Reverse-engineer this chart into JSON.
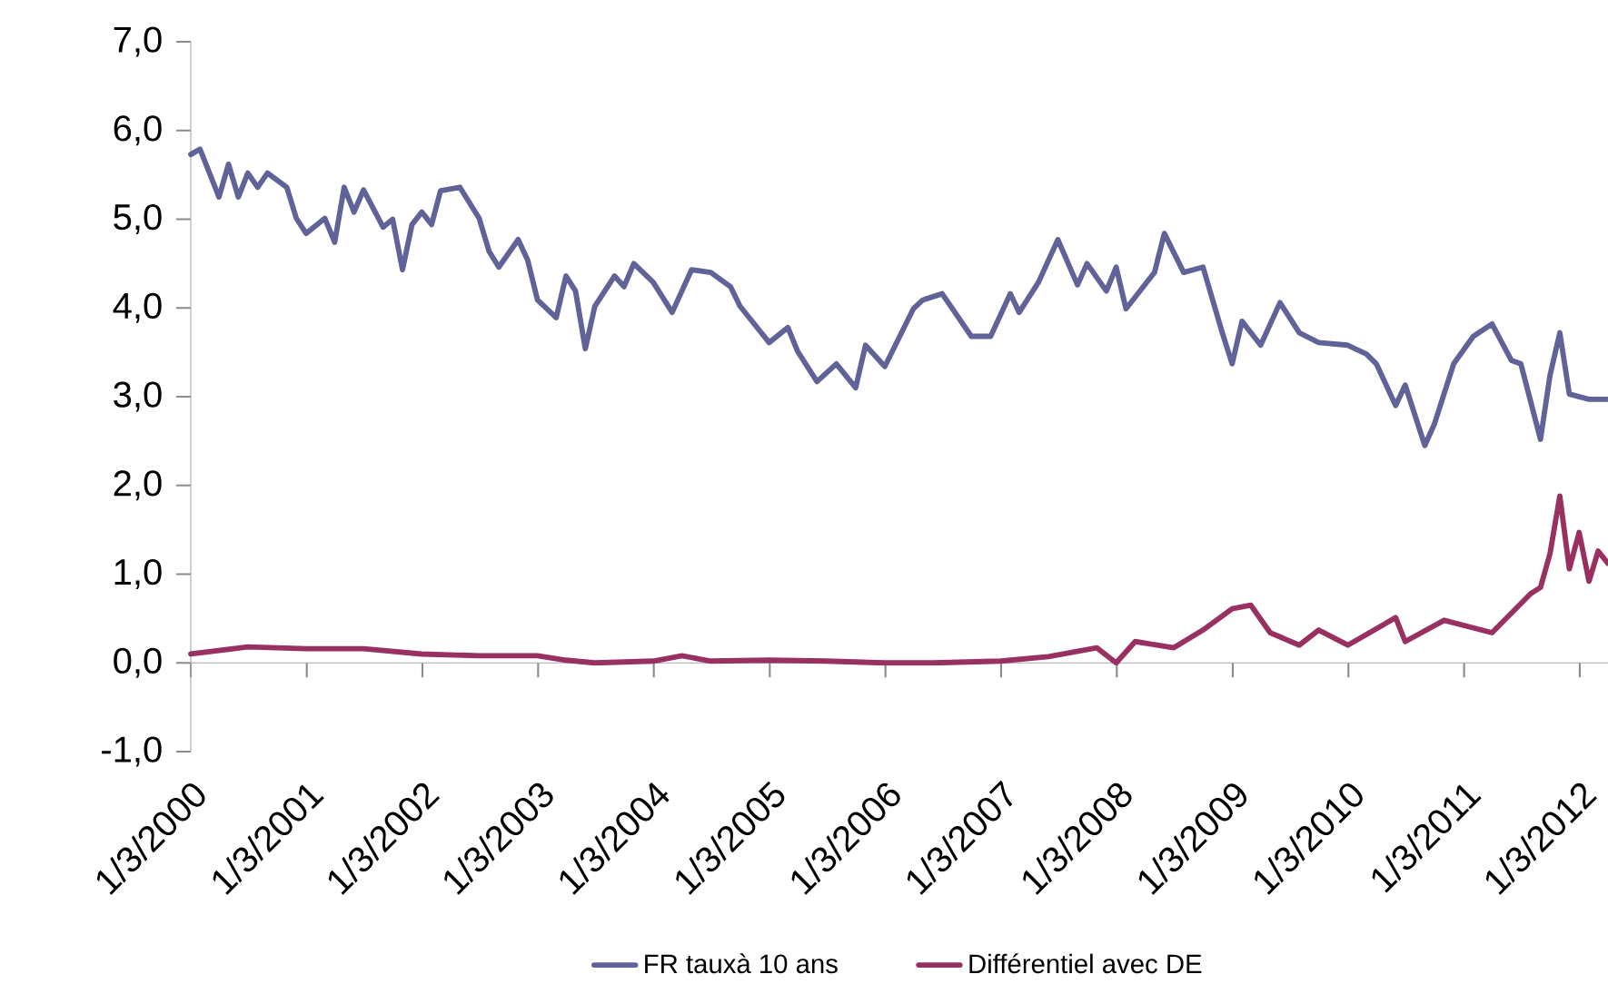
{
  "chart_data": {
    "type": "line",
    "xlim": [
      "2000-01-03",
      "2012-04-01"
    ],
    "xticks": [
      {
        "value": "2000-01-03",
        "label": "1/3/2000"
      },
      {
        "value": "2001-01-03",
        "label": "1/3/2001"
      },
      {
        "value": "2002-01-03",
        "label": "1/3/2002"
      },
      {
        "value": "2003-01-03",
        "label": "1/3/2003"
      },
      {
        "value": "2004-01-03",
        "label": "1/3/2004"
      },
      {
        "value": "2005-01-03",
        "label": "1/3/2005"
      },
      {
        "value": "2006-01-03",
        "label": "1/3/2006"
      },
      {
        "value": "2007-01-03",
        "label": "1/3/2007"
      },
      {
        "value": "2008-01-03",
        "label": "1/3/2008"
      },
      {
        "value": "2009-01-03",
        "label": "1/3/2009"
      },
      {
        "value": "2010-01-03",
        "label": "1/3/2010"
      },
      {
        "value": "2011-01-03",
        "label": "1/3/2011"
      },
      {
        "value": "2012-01-03",
        "label": "1/3/2012"
      }
    ],
    "ylim": [
      -1,
      7
    ],
    "yticks": [
      {
        "value": -1,
        "label": "-1,0"
      },
      {
        "value": 0,
        "label": "0,0"
      },
      {
        "value": 1,
        "label": "1,0"
      },
      {
        "value": 2,
        "label": "2,0"
      },
      {
        "value": 3,
        "label": "3,0"
      },
      {
        "value": 4,
        "label": "4,0"
      },
      {
        "value": 5,
        "label": "5,0"
      },
      {
        "value": 6,
        "label": "6,0"
      },
      {
        "value": 7,
        "label": "7,0"
      }
    ],
    "legend": "bottom",
    "line_style": "solid",
    "series": [
      {
        "name": "FR tauxà 10 ans",
        "color": "#5f6398",
        "x": [
          "2000-01-03",
          "2000-02",
          "2000-04",
          "2000-05",
          "2000-06",
          "2000-07",
          "2000-08",
          "2000-09",
          "2000-11",
          "2000-12",
          "2001-01",
          "2001-03",
          "2001-04",
          "2001-05",
          "2001-06",
          "2001-07",
          "2001-09",
          "2001-10",
          "2001-11",
          "2001-12",
          "2002-01",
          "2002-02",
          "2002-03",
          "2002-05",
          "2002-07",
          "2002-08",
          "2002-09",
          "2002-11",
          "2002-12",
          "2003-01",
          "2003-03",
          "2003-04",
          "2003-05",
          "2003-06",
          "2003-07",
          "2003-09",
          "2003-10",
          "2003-11",
          "2004-01",
          "2004-03",
          "2004-05",
          "2004-07",
          "2004-09",
          "2004-10",
          "2005-01",
          "2005-03",
          "2005-04",
          "2005-06",
          "2005-08",
          "2005-10",
          "2005-11",
          "2006-01",
          "2006-04",
          "2006-05",
          "2006-07",
          "2006-10",
          "2006-12",
          "2007-02",
          "2007-03",
          "2007-05",
          "2007-07",
          "2007-09",
          "2007-10",
          "2007-12",
          "2008-01",
          "2008-02",
          "2008-05",
          "2008-06",
          "2008-08",
          "2008-10",
          "2008-12",
          "2009-01",
          "2009-02",
          "2009-04",
          "2009-06",
          "2009-08",
          "2009-10",
          "2010-01",
          "2010-03",
          "2010-04",
          "2010-06",
          "2010-07",
          "2010-09",
          "2010-10",
          "2010-12",
          "2011-02",
          "2011-04",
          "2011-06",
          "2011-07",
          "2011-09",
          "2011-10",
          "2011-11",
          "2011-12",
          "2012-02",
          "2012-04"
        ],
        "values": [
          5.73,
          5.79,
          5.25,
          5.62,
          5.25,
          5.52,
          5.36,
          5.52,
          5.36,
          5.01,
          4.84,
          5.01,
          4.74,
          5.36,
          5.08,
          5.33,
          4.91,
          5.0,
          4.43,
          4.94,
          5.08,
          4.94,
          5.32,
          5.36,
          5.01,
          4.64,
          4.46,
          4.77,
          4.54,
          4.09,
          3.89,
          4.36,
          4.19,
          3.54,
          4.02,
          4.36,
          4.24,
          4.5,
          4.29,
          3.95,
          4.43,
          4.4,
          4.24,
          4.02,
          3.61,
          3.78,
          3.51,
          3.17,
          3.37,
          3.1,
          3.58,
          3.34,
          3.99,
          4.09,
          4.16,
          3.68,
          3.68,
          4.16,
          3.95,
          4.29,
          4.77,
          4.26,
          4.5,
          4.19,
          4.46,
          3.99,
          4.4,
          4.84,
          4.4,
          4.46,
          3.72,
          3.37,
          3.85,
          3.58,
          4.06,
          3.72,
          3.61,
          3.58,
          3.48,
          3.37,
          2.9,
          3.13,
          2.45,
          2.69,
          3.37,
          3.68,
          3.82,
          3.41,
          3.37,
          2.52,
          3.24,
          3.72,
          3.03,
          2.97,
          2.97
        ]
      },
      {
        "name": "Différentiel avec DE",
        "color": "#983162",
        "x": [
          "2000-01-03",
          "2000-07",
          "2001-01",
          "2001-07",
          "2002-01",
          "2002-07",
          "2003-01",
          "2003-04",
          "2003-07",
          "2004-01",
          "2004-04",
          "2004-07",
          "2005-01",
          "2005-07",
          "2006-01",
          "2006-06",
          "2007-01",
          "2007-06",
          "2007-11",
          "2008-01",
          "2008-03",
          "2008-07",
          "2008-10",
          "2009-01",
          "2009-03",
          "2009-05",
          "2009-08",
          "2009-10",
          "2010-01",
          "2010-06",
          "2010-07",
          "2010-11",
          "2011-04",
          "2011-08",
          "2011-09",
          "2011-10",
          "2011-11",
          "2011-12",
          "2012-01",
          "2012-02",
          "2012-03",
          "2012-04"
        ],
        "values": [
          0.1,
          0.18,
          0.16,
          0.16,
          0.1,
          0.08,
          0.08,
          0.03,
          0.0,
          0.02,
          0.08,
          0.02,
          0.03,
          0.02,
          0.0,
          0.0,
          0.02,
          0.07,
          0.17,
          0.0,
          0.24,
          0.17,
          0.37,
          0.61,
          0.65,
          0.34,
          0.2,
          0.37,
          0.2,
          0.51,
          0.24,
          0.48,
          0.34,
          0.78,
          0.85,
          1.23,
          1.88,
          1.06,
          1.47,
          0.92,
          1.26,
          1.12
        ]
      }
    ]
  }
}
